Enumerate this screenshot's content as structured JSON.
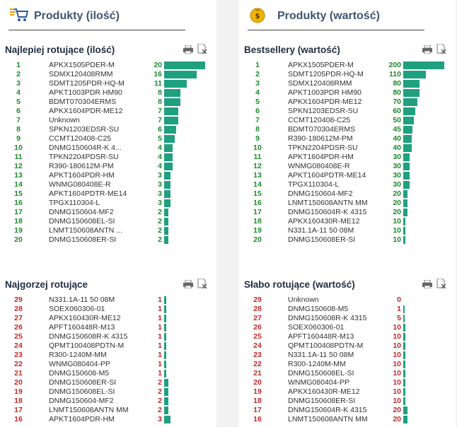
{
  "colors": {
    "green": "#1b8a2c",
    "red": "#c0282c",
    "bar": "#1fa07e",
    "title": "#3d5570"
  },
  "panels": [
    {
      "title": "Produkty (ilość)",
      "icon": "cart-icon",
      "sections": [
        {
          "heading": "Najlepiej rotujące (ilość)",
          "tone": "green",
          "max": 20,
          "rows": [
            {
              "rank": "1",
              "name": "APKX1505PDER-M",
              "value": "20",
              "amount": 20
            },
            {
              "rank": "2",
              "name": "SDMX120408RMM",
              "value": "16",
              "amount": 16
            },
            {
              "rank": "3",
              "name": "SDMT1205PDR-HQ-M",
              "value": "11",
              "amount": 11
            },
            {
              "rank": "4",
              "name": "APKT1003PDR HM90",
              "value": "8",
              "amount": 8
            },
            {
              "rank": "5",
              "name": "BDMT070304ERMS",
              "value": "8",
              "amount": 8
            },
            {
              "rank": "6",
              "name": "APKX1604PDR-ME12",
              "value": "7",
              "amount": 7
            },
            {
              "rank": "7",
              "name": "Unknown",
              "value": "7",
              "amount": 7
            },
            {
              "rank": "8",
              "name": "SPKN1203EDSR-SU",
              "value": "6",
              "amount": 6
            },
            {
              "rank": "9",
              "name": "CCMT120408-C25",
              "value": "5",
              "amount": 5
            },
            {
              "rank": "10",
              "name": "DNMG150604R-K 4...",
              "value": "4",
              "amount": 4
            },
            {
              "rank": "11",
              "name": "TPKN2204PDSR-SU",
              "value": "4",
              "amount": 4
            },
            {
              "rank": "12",
              "name": "R390-180612M-PM",
              "value": "4",
              "amount": 4
            },
            {
              "rank": "13",
              "name": "APKT1604PDR-HM",
              "value": "3",
              "amount": 3
            },
            {
              "rank": "14",
              "name": "WNMG080408E-R",
              "value": "3",
              "amount": 3
            },
            {
              "rank": "15",
              "name": "APKT1604PDTR-ME14",
              "value": "3",
              "amount": 3
            },
            {
              "rank": "16",
              "name": "TPGX110304-L",
              "value": "3",
              "amount": 3
            },
            {
              "rank": "17",
              "name": "DNMG150604-MF2",
              "value": "2",
              "amount": 2
            },
            {
              "rank": "18",
              "name": "DNMG150608EL-SI",
              "value": "2",
              "amount": 2
            },
            {
              "rank": "19",
              "name": "LNMT150608ANTN ...",
              "value": "2",
              "amount": 2
            },
            {
              "rank": "20",
              "name": "DNMG150608ER-SI",
              "value": "2",
              "amount": 2
            }
          ]
        },
        {
          "heading": "Najgorzej rotujące",
          "tone": "red",
          "max": 20,
          "rows": [
            {
              "rank": "29",
              "name": "N331.1A-11 50 08M",
              "value": "1",
              "amount": 1
            },
            {
              "rank": "28",
              "name": "SOEX060306-01",
              "value": "1",
              "amount": 1
            },
            {
              "rank": "27",
              "name": "APKX160430R-ME12",
              "value": "1",
              "amount": 1
            },
            {
              "rank": "26",
              "name": "APFT160448R-M13",
              "value": "1",
              "amount": 1
            },
            {
              "rank": "25",
              "name": "DNMG150608R-K 4315",
              "value": "1",
              "amount": 1
            },
            {
              "rank": "24",
              "name": "QPMT100408PDTN-M",
              "value": "1",
              "amount": 1
            },
            {
              "rank": "23",
              "name": "R300-1240M-MM",
              "value": "1",
              "amount": 1
            },
            {
              "rank": "22",
              "name": "WNMG080404-PP",
              "value": "1",
              "amount": 1
            },
            {
              "rank": "21",
              "name": "DNMG150608-M5",
              "value": "1",
              "amount": 1
            },
            {
              "rank": "20",
              "name": "DNMG150608ER-SI",
              "value": "2",
              "amount": 2
            },
            {
              "rank": "19",
              "name": "DNMG150608EL-SI",
              "value": "2",
              "amount": 2
            },
            {
              "rank": "18",
              "name": "DNMG150604-MF2",
              "value": "2",
              "amount": 2
            },
            {
              "rank": "17",
              "name": "LNMT150608ANTN MM",
              "value": "2",
              "amount": 2
            },
            {
              "rank": "16",
              "name": "APKT1604PDR-HM",
              "value": "3",
              "amount": 3
            }
          ]
        }
      ]
    },
    {
      "title": "Produkty (wartość)",
      "icon": "money-bag-icon",
      "sections": [
        {
          "heading": "Bestsellery (wartość)",
          "tone": "green",
          "max": 200,
          "rows": [
            {
              "rank": "1",
              "name": "APKX1505PDER-M",
              "value": "200",
              "amount": 200
            },
            {
              "rank": "2",
              "name": "SDMT1205PDR-HQ-M",
              "value": "110",
              "amount": 110
            },
            {
              "rank": "3",
              "name": "SDMX120408RMM",
              "value": "80",
              "amount": 80
            },
            {
              "rank": "4",
              "name": "APKT1003PDR HM90",
              "value": "80",
              "amount": 80
            },
            {
              "rank": "5",
              "name": "APKX1604PDR-ME12",
              "value": "70",
              "amount": 70
            },
            {
              "rank": "6",
              "name": "SPKN1203EDSR-SU",
              "value": "60",
              "amount": 60
            },
            {
              "rank": "7",
              "name": "CCMT120408-C25",
              "value": "50",
              "amount": 50
            },
            {
              "rank": "8",
              "name": "BDMT070304ERMS",
              "value": "45",
              "amount": 45
            },
            {
              "rank": "9",
              "name": "R390-180612M-PM",
              "value": "40",
              "amount": 40
            },
            {
              "rank": "10",
              "name": "TPKN2204PDSR-SU",
              "value": "40",
              "amount": 40
            },
            {
              "rank": "11",
              "name": "APKT1604PDR-HM",
              "value": "30",
              "amount": 30
            },
            {
              "rank": "12",
              "name": "WNMG080408E-R",
              "value": "30",
              "amount": 30
            },
            {
              "rank": "13",
              "name": "APKT1604PDTR-ME14",
              "value": "30",
              "amount": 30
            },
            {
              "rank": "14",
              "name": "TPGX110304-L",
              "value": "30",
              "amount": 30
            },
            {
              "rank": "15",
              "name": "DNMG150604-MF2",
              "value": "20",
              "amount": 20
            },
            {
              "rank": "16",
              "name": "LNMT150608ANTN MM",
              "value": "20",
              "amount": 20
            },
            {
              "rank": "17",
              "name": "DNMG150604R-K 4315",
              "value": "20",
              "amount": 20
            },
            {
              "rank": "18",
              "name": "APKX160430R-ME12",
              "value": "10",
              "amount": 10
            },
            {
              "rank": "19",
              "name": "N331.1A-11 50 08M",
              "value": "10",
              "amount": 10
            },
            {
              "rank": "20",
              "name": "DNMG150608ER-SI",
              "value": "10",
              "amount": 10
            }
          ]
        },
        {
          "heading": "Słabo rotujące (wartość)",
          "tone": "red",
          "max": 200,
          "rows": [
            {
              "rank": "29",
              "name": "Unknown",
              "value": "0",
              "amount": 0
            },
            {
              "rank": "28",
              "name": "DNMG150608-M5",
              "value": "1",
              "amount": 1
            },
            {
              "rank": "27",
              "name": "DNMG150608R-K 4315",
              "value": "5",
              "amount": 5
            },
            {
              "rank": "26",
              "name": "SOEX060306-01",
              "value": "10",
              "amount": 10
            },
            {
              "rank": "25",
              "name": "APFT160448R-M13",
              "value": "10",
              "amount": 10
            },
            {
              "rank": "24",
              "name": "QPMT100408PDTN-M",
              "value": "10",
              "amount": 10
            },
            {
              "rank": "23",
              "name": "N331.1A-11 50 08M",
              "value": "10",
              "amount": 10
            },
            {
              "rank": "22",
              "name": "R300-1240M-MM",
              "value": "10",
              "amount": 10
            },
            {
              "rank": "21",
              "name": "DNMG150608EL-SI",
              "value": "10",
              "amount": 10
            },
            {
              "rank": "20",
              "name": "WNMG080404-PP",
              "value": "10",
              "amount": 10
            },
            {
              "rank": "19",
              "name": "APKX160430R-ME12",
              "value": "10",
              "amount": 10
            },
            {
              "rank": "18",
              "name": "DNMG150608ER-SI",
              "value": "10",
              "amount": 10
            },
            {
              "rank": "17",
              "name": "DNMG150604R-K 4315",
              "value": "20",
              "amount": 20
            },
            {
              "rank": "16",
              "name": "LNMT150608ANTN MM",
              "value": "20",
              "amount": 20
            }
          ]
        }
      ]
    }
  ]
}
